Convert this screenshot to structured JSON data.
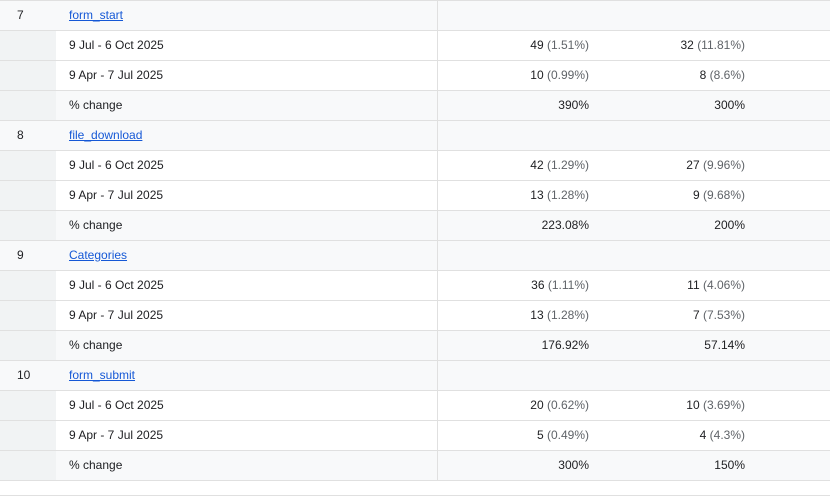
{
  "groups": [
    {
      "number": "7",
      "event": "form_start",
      "rows": [
        {
          "label": "9 Jul - 6 Oct 2025",
          "v1": "49",
          "p1": "(1.51%)",
          "v2": "32",
          "p2": "(11.81%)"
        },
        {
          "label": "9 Apr - 7 Jul 2025",
          "v1": "10",
          "p1": "(0.99%)",
          "v2": "8",
          "p2": "(8.6%)"
        },
        {
          "label": "% change",
          "v1": "390%",
          "p1": "",
          "v2": "300%",
          "p2": ""
        }
      ]
    },
    {
      "number": "8",
      "event": "file_download",
      "rows": [
        {
          "label": "9 Jul - 6 Oct 2025",
          "v1": "42",
          "p1": "(1.29%)",
          "v2": "27",
          "p2": "(9.96%)"
        },
        {
          "label": "9 Apr - 7 Jul 2025",
          "v1": "13",
          "p1": "(1.28%)",
          "v2": "9",
          "p2": "(9.68%)"
        },
        {
          "label": "% change",
          "v1": "223.08%",
          "p1": "",
          "v2": "200%",
          "p2": ""
        }
      ]
    },
    {
      "number": "9",
      "event": "Categories",
      "rows": [
        {
          "label": "9 Jul - 6 Oct 2025",
          "v1": "36",
          "p1": "(1.11%)",
          "v2": "11",
          "p2": "(4.06%)"
        },
        {
          "label": "9 Apr - 7 Jul 2025",
          "v1": "13",
          "p1": "(1.28%)",
          "v2": "7",
          "p2": "(7.53%)"
        },
        {
          "label": "% change",
          "v1": "176.92%",
          "p1": "",
          "v2": "57.14%",
          "p2": ""
        }
      ]
    },
    {
      "number": "10",
      "event": "form_submit",
      "rows": [
        {
          "label": "9 Jul - 6 Oct 2025",
          "v1": "20",
          "p1": "(0.62%)",
          "v2": "10",
          "p2": "(3.69%)"
        },
        {
          "label": "9 Apr - 7 Jul 2025",
          "v1": "5",
          "p1": "(0.49%)",
          "v2": "4",
          "p2": "(4.3%)"
        },
        {
          "label": "% change",
          "v1": "300%",
          "p1": "",
          "v2": "150%",
          "p2": ""
        }
      ]
    }
  ]
}
